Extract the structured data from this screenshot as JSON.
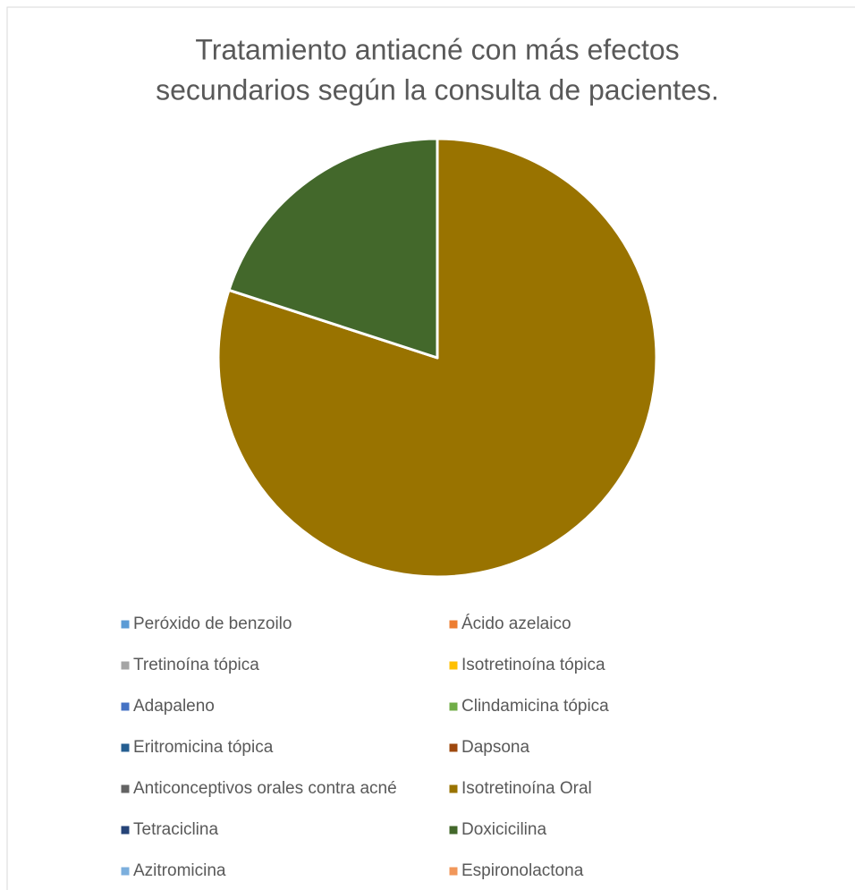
{
  "chart_data": {
    "type": "pie",
    "title": [
      "Tratamiento antiacné con más efectos",
      "secundarios según la consulta de pacientes."
    ],
    "categories": [
      "Peróxido de benzoilo",
      "Ácido azelaico",
      "Tretinoína tópica",
      "Isotretinoína tópica",
      "Adapaleno",
      "Clindamicina tópica",
      "Eritromicina tópica",
      "Dapsona",
      "Anticonceptivos orales contra acné",
      "Isotretinoína Oral",
      "Tetraciclina",
      "Doxicicilina",
      "Azitromicina",
      "Espironolactona"
    ],
    "values": [
      0,
      0,
      0,
      0,
      0,
      0,
      0,
      0,
      0,
      80,
      0,
      20,
      0,
      0
    ],
    "colors": [
      "#5b9bd5",
      "#ed7d31",
      "#a5a5a5",
      "#ffc000",
      "#4472c4",
      "#70ad47",
      "#255e91",
      "#9e480e",
      "#636363",
      "#997300",
      "#264478",
      "#43682b",
      "#7cafdd",
      "#f1975a"
    ],
    "legend": "bottom"
  }
}
